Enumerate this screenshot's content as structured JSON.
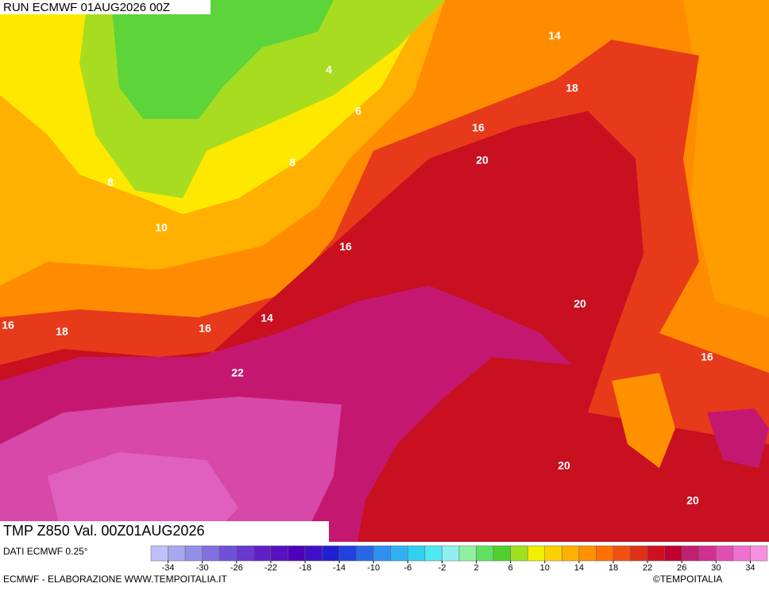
{
  "header": {
    "run": "RUN ECMWF 01AUG2026 00Z"
  },
  "map": {
    "field_label": "TMP Z850 Val. 00Z01AUG2026",
    "contour_labels": [
      14,
      18,
      4,
      6,
      16,
      8,
      20,
      8,
      10,
      16,
      16,
      18,
      16,
      14,
      20,
      16,
      22,
      20,
      20
    ]
  },
  "colorbar": {
    "ticks": [
      -34,
      -30,
      -26,
      -22,
      -18,
      -14,
      -10,
      -6,
      -2,
      2,
      6,
      10,
      14,
      18,
      22,
      26,
      30,
      34
    ],
    "colors": [
      "#c0c0f8",
      "#a8a8f0",
      "#9090e8",
      "#8070e0",
      "#7050d8",
      "#6838d0",
      "#6020c8",
      "#5810c0",
      "#5000b8",
      "#4010c8",
      "#2020d0",
      "#2040e0",
      "#2868e8",
      "#3090f0",
      "#30b0f0",
      "#30d0f0",
      "#50e8f0",
      "#90f0f0",
      "#90f0a0",
      "#60e060",
      "#50d030",
      "#a0e020",
      "#f0f000",
      "#ffd000",
      "#ffb000",
      "#ff9000",
      "#ff7000",
      "#f05010",
      "#e03018",
      "#d01020",
      "#c00030",
      "#c02070",
      "#d03090",
      "#e050b0",
      "#f070d0",
      "#f890e0"
    ]
  },
  "footer": {
    "source": "DATI ECMWF 0.25°",
    "credit": "ECMWF - ELABORAZIONE WWW.TEMPOITALIA.IT",
    "copyright": "©TEMPOITALIA"
  }
}
